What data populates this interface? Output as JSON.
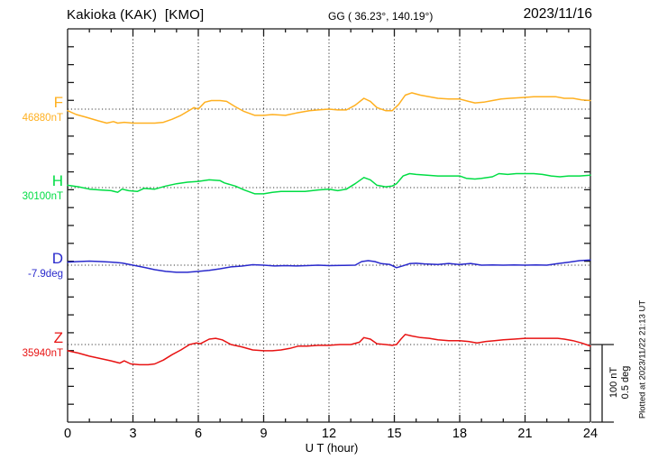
{
  "header": {
    "title": "Kakioka (KAK)  [KMO]",
    "coordinates": "GG ( 36.23°, 140.19°)",
    "date": "2023/11/16"
  },
  "x_axis": {
    "label": "U T (hour)",
    "tick_labels": [
      "0",
      "3",
      "6",
      "9",
      "12",
      "15",
      "18",
      "21",
      "24"
    ]
  },
  "scale_bar": {
    "nt_label": "100 nT",
    "deg_label": "0.5 deg"
  },
  "plotted_note": "Plotted at 2023/11/22 21:13 UT",
  "chart_data": {
    "type": "line",
    "title": "Kakioka (KAK) [KMO] magnetogram, 2023/11/16",
    "xlabel": "U T (hour)",
    "x_range_hours": [
      0,
      24
    ],
    "x_major_tick_hours": 3,
    "x_minor_tick_hours": 1,
    "grid": "dotted vertical lines every 3 h; dotted horizontal baseline per component",
    "legend_position": "left of each trace",
    "scale": {
      "nT_per_bar": 100,
      "deg_per_bar": 0.5
    },
    "series": [
      {
        "name": "F",
        "baseline_label": "46880nT",
        "unit": "nT",
        "color": "#FFB020",
        "points": [
          [
            0,
            -2
          ],
          [
            0.4,
            -7
          ],
          [
            0.8,
            -10
          ],
          [
            1.4,
            -15
          ],
          [
            1.8,
            -18
          ],
          [
            2.1,
            -16
          ],
          [
            2.3,
            -18
          ],
          [
            2.6,
            -17
          ],
          [
            3,
            -18
          ],
          [
            3.4,
            -18
          ],
          [
            4,
            -18
          ],
          [
            4.4,
            -17
          ],
          [
            4.8,
            -13
          ],
          [
            5.2,
            -8
          ],
          [
            5.5,
            -3
          ],
          [
            5.8,
            2
          ],
          [
            6,
            0
          ],
          [
            6.3,
            9
          ],
          [
            6.6,
            11
          ],
          [
            7,
            11
          ],
          [
            7.3,
            10
          ],
          [
            7.7,
            3
          ],
          [
            8.1,
            -3
          ],
          [
            8.6,
            -8
          ],
          [
            9,
            -8
          ],
          [
            9.4,
            -7
          ],
          [
            10,
            -8
          ],
          [
            10.5,
            -5
          ],
          [
            11.1,
            -2
          ],
          [
            11.5,
            -1
          ],
          [
            12,
            0
          ],
          [
            12.4,
            -1
          ],
          [
            12.8,
            -1
          ],
          [
            13.2,
            5
          ],
          [
            13.6,
            14
          ],
          [
            13.9,
            10
          ],
          [
            14.2,
            2
          ],
          [
            14.6,
            -2
          ],
          [
            14.9,
            -2
          ],
          [
            15.2,
            6
          ],
          [
            15.5,
            18
          ],
          [
            15.8,
            21
          ],
          [
            16.2,
            18
          ],
          [
            16.6,
            16
          ],
          [
            17,
            14
          ],
          [
            17.5,
            13
          ],
          [
            18,
            13
          ],
          [
            18.4,
            10
          ],
          [
            18.7,
            8
          ],
          [
            19.1,
            9
          ],
          [
            19.5,
            11
          ],
          [
            19.9,
            13
          ],
          [
            20.3,
            14
          ],
          [
            20.9,
            15
          ],
          [
            21.4,
            16
          ],
          [
            22,
            16
          ],
          [
            22.4,
            16
          ],
          [
            22.8,
            14
          ],
          [
            23.2,
            14
          ],
          [
            23.6,
            12
          ],
          [
            24,
            11
          ]
        ]
      },
      {
        "name": "H",
        "baseline_label": "30100nT",
        "unit": "nT",
        "color": "#00DD44",
        "points": [
          [
            0,
            3
          ],
          [
            0.5,
            1
          ],
          [
            1,
            -2
          ],
          [
            1.5,
            -3
          ],
          [
            2,
            -4
          ],
          [
            2.3,
            -6
          ],
          [
            2.5,
            -2
          ],
          [
            2.8,
            -4
          ],
          [
            3.2,
            -5
          ],
          [
            3.5,
            -1
          ],
          [
            4,
            -2
          ],
          [
            4.5,
            2
          ],
          [
            5,
            5
          ],
          [
            5.5,
            7
          ],
          [
            6,
            8
          ],
          [
            6.5,
            10
          ],
          [
            7,
            9
          ],
          [
            7.2,
            6
          ],
          [
            7.7,
            2
          ],
          [
            8.1,
            -3
          ],
          [
            8.6,
            -8
          ],
          [
            9,
            -8
          ],
          [
            9.4,
            -6
          ],
          [
            9.8,
            -5
          ],
          [
            10.4,
            -5
          ],
          [
            10.9,
            -5
          ],
          [
            11.5,
            -3
          ],
          [
            12,
            -2
          ],
          [
            12.4,
            -4
          ],
          [
            12.8,
            -2
          ],
          [
            13.2,
            5
          ],
          [
            13.6,
            13
          ],
          [
            13.9,
            10
          ],
          [
            14.2,
            3
          ],
          [
            14.6,
            1
          ],
          [
            14.9,
            2
          ],
          [
            15.1,
            5
          ],
          [
            15.4,
            15
          ],
          [
            15.7,
            18
          ],
          [
            16,
            17
          ],
          [
            16.5,
            16
          ],
          [
            17,
            15
          ],
          [
            17.5,
            15
          ],
          [
            18,
            15
          ],
          [
            18.3,
            12
          ],
          [
            18.7,
            11
          ],
          [
            19,
            12
          ],
          [
            19.5,
            14
          ],
          [
            19.8,
            18
          ],
          [
            20.2,
            17
          ],
          [
            20.6,
            18
          ],
          [
            21,
            18
          ],
          [
            21.4,
            18
          ],
          [
            21.8,
            17
          ],
          [
            22.2,
            15
          ],
          [
            22.6,
            14
          ],
          [
            23,
            15
          ],
          [
            23.5,
            15
          ],
          [
            24,
            16
          ]
        ]
      },
      {
        "name": "D",
        "baseline_label": "-7.9deg",
        "unit": "deg",
        "color": "#2929CC",
        "points": [
          [
            0,
            0.02
          ],
          [
            0.5,
            0.023
          ],
          [
            1,
            0.026
          ],
          [
            1.5,
            0.023
          ],
          [
            2,
            0.02
          ],
          [
            2.5,
            0.014
          ],
          [
            3,
            0.0
          ],
          [
            3.5,
            -0.014
          ],
          [
            4,
            -0.029
          ],
          [
            4.5,
            -0.04
          ],
          [
            5,
            -0.046
          ],
          [
            5.5,
            -0.046
          ],
          [
            6,
            -0.04
          ],
          [
            6.5,
            -0.034
          ],
          [
            7,
            -0.023
          ],
          [
            7.5,
            -0.011
          ],
          [
            8,
            -0.006
          ],
          [
            8.5,
            0.003
          ],
          [
            9,
            0.0
          ],
          [
            9.5,
            -0.005
          ],
          [
            10,
            -0.003
          ],
          [
            10.5,
            -0.005
          ],
          [
            11,
            -0.003
          ],
          [
            11.5,
            0.0
          ],
          [
            12,
            -0.003
          ],
          [
            12.6,
            -0.002
          ],
          [
            13.2,
            0.0
          ],
          [
            13.5,
            0.023
          ],
          [
            13.8,
            0.029
          ],
          [
            14.1,
            0.023
          ],
          [
            14.4,
            0.01
          ],
          [
            14.8,
            0.004
          ],
          [
            15.1,
            -0.016
          ],
          [
            15.4,
            -0.004
          ],
          [
            15.7,
            0.01
          ],
          [
            16,
            0.012
          ],
          [
            16.4,
            0.008
          ],
          [
            17,
            0.004
          ],
          [
            17.5,
            0.011
          ],
          [
            18,
            0.004
          ],
          [
            18.5,
            0.011
          ],
          [
            19,
            0.0
          ],
          [
            19.5,
            0.002
          ],
          [
            20,
            0.0
          ],
          [
            20.5,
            0.002
          ],
          [
            21,
            0.0
          ],
          [
            21.5,
            0.002
          ],
          [
            22,
            0.0
          ],
          [
            22.5,
            0.01
          ],
          [
            23,
            0.019
          ],
          [
            23.5,
            0.029
          ],
          [
            24,
            0.034
          ]
        ]
      },
      {
        "name": "Z",
        "baseline_label": "35940nT",
        "unit": "nT",
        "color": "#E81313",
        "points": [
          [
            0,
            -8
          ],
          [
            0.5,
            -11
          ],
          [
            1,
            -15
          ],
          [
            1.5,
            -18
          ],
          [
            2,
            -21
          ],
          [
            2.4,
            -24
          ],
          [
            2.6,
            -21
          ],
          [
            2.9,
            -25
          ],
          [
            3.3,
            -26
          ],
          [
            3.7,
            -26
          ],
          [
            4,
            -25
          ],
          [
            4.4,
            -20
          ],
          [
            4.8,
            -13
          ],
          [
            5.2,
            -7
          ],
          [
            5.6,
            0
          ],
          [
            5.9,
            2
          ],
          [
            6.1,
            1
          ],
          [
            6.5,
            7
          ],
          [
            6.8,
            8
          ],
          [
            7.1,
            6
          ],
          [
            7.5,
            0
          ],
          [
            8,
            -3
          ],
          [
            8.5,
            -7
          ],
          [
            9,
            -8
          ],
          [
            9.4,
            -8
          ],
          [
            9.8,
            -7
          ],
          [
            10.2,
            -5
          ],
          [
            10.6,
            -2
          ],
          [
            11,
            -2
          ],
          [
            11.5,
            -1
          ],
          [
            12,
            -1
          ],
          [
            12.5,
            0
          ],
          [
            13,
            0
          ],
          [
            13.4,
            3
          ],
          [
            13.6,
            9
          ],
          [
            13.9,
            7
          ],
          [
            14.2,
            1
          ],
          [
            14.6,
            0
          ],
          [
            14.9,
            -1
          ],
          [
            15.1,
            0
          ],
          [
            15.3,
            7
          ],
          [
            15.5,
            13
          ],
          [
            15.8,
            11
          ],
          [
            16.2,
            9
          ],
          [
            16.6,
            8
          ],
          [
            17,
            6
          ],
          [
            17.5,
            5
          ],
          [
            18,
            5
          ],
          [
            18.4,
            4
          ],
          [
            18.8,
            2
          ],
          [
            19.2,
            4
          ],
          [
            19.6,
            5
          ],
          [
            20,
            6
          ],
          [
            20.5,
            7
          ],
          [
            21,
            8
          ],
          [
            21.5,
            8
          ],
          [
            22,
            8
          ],
          [
            22.5,
            8
          ],
          [
            22.8,
            7
          ],
          [
            23.2,
            5
          ],
          [
            23.6,
            2
          ],
          [
            23.8,
            0
          ],
          [
            24,
            -2
          ]
        ]
      }
    ]
  }
}
